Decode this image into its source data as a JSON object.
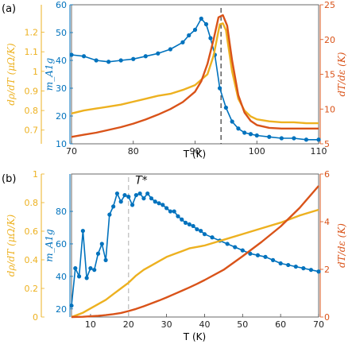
{
  "chart_data": [
    {
      "panel_label": "(a)",
      "type": "line",
      "xlabel": "T (K)",
      "xlim": [
        70,
        110
      ],
      "xticks": [
        "70",
        "80",
        "90",
        "100",
        "110"
      ],
      "annotations": [
        {
          "kind": "vline-dashed",
          "x": 94.2,
          "color": "#333333"
        }
      ],
      "axes": [
        {
          "side": "left-outer",
          "label": "dρ/dT (μΩ/K)",
          "ylim": [
            0.63,
            1.34
          ],
          "ticks": [
            "0.7",
            "0.8",
            "0.9",
            "1",
            "1.1",
            "1.2"
          ],
          "color": "#EDB120"
        },
        {
          "side": "left-inner",
          "label": "m_A1g",
          "ylim": [
            10,
            60
          ],
          "ticks": [
            "10",
            "20",
            "30",
            "40",
            "50",
            "60"
          ],
          "color": "#0072BD"
        },
        {
          "side": "right",
          "label": "dT/dε (K)",
          "ylim": [
            5,
            25
          ],
          "ticks": [
            "5",
            "10",
            "15",
            "20",
            "25"
          ],
          "color": "#D95319"
        }
      ],
      "series": [
        {
          "axis": "left-inner",
          "color": "#0072BD",
          "markers": true,
          "x": [
            70,
            72,
            74,
            76,
            78,
            80,
            82,
            84,
            86,
            88,
            89,
            90,
            91,
            91.8,
            92.5,
            93.2,
            94,
            95,
            96,
            97,
            98,
            99,
            100,
            102,
            104,
            106,
            108,
            110
          ],
          "y": [
            42,
            41.5,
            40,
            39.5,
            40,
            40.5,
            41.5,
            42.5,
            44,
            46.5,
            49,
            51,
            55,
            53,
            48,
            42,
            30,
            23,
            18,
            15.5,
            14,
            13.5,
            13,
            12.5,
            12,
            12,
            11.5,
            11.5
          ]
        },
        {
          "axis": "left-outer",
          "color": "#EDB120",
          "markers": false,
          "x": [
            70,
            72,
            74,
            76,
            78,
            80,
            82,
            84,
            86,
            88,
            90,
            92,
            93,
            94,
            94.5,
            95,
            96,
            97,
            98,
            99,
            100,
            102,
            104,
            106,
            108,
            110
          ],
          "y": [
            0.785,
            0.8,
            0.81,
            0.82,
            0.83,
            0.845,
            0.86,
            0.875,
            0.885,
            0.905,
            0.93,
            0.985,
            1.08,
            1.24,
            1.245,
            1.21,
            1.0,
            0.86,
            0.8,
            0.77,
            0.755,
            0.745,
            0.74,
            0.74,
            0.735,
            0.735
          ]
        },
        {
          "axis": "right",
          "color": "#D95319",
          "markers": false,
          "x": [
            70,
            72,
            74,
            76,
            78,
            80,
            82,
            84,
            86,
            88,
            90,
            91,
            92,
            93,
            93.8,
            94.5,
            95.2,
            96,
            97,
            98,
            99,
            100,
            102,
            104,
            106,
            108,
            110
          ],
          "y": [
            6,
            6.3,
            6.6,
            7,
            7.4,
            7.9,
            8.5,
            9.2,
            10,
            11,
            12.5,
            14,
            16.5,
            20,
            23.2,
            23.5,
            22,
            17,
            12,
            9.5,
            8.3,
            7.7,
            7.3,
            7.2,
            7.2,
            7.2,
            7.2
          ]
        }
      ]
    },
    {
      "panel_label": "(b)",
      "type": "line",
      "xlabel": "T (K)",
      "xlim": [
        5,
        70
      ],
      "xticks": [
        "10",
        "20",
        "30",
        "40",
        "50",
        "60",
        "70"
      ],
      "annotations": [
        {
          "kind": "vline-dashed",
          "x": 20,
          "color": "#BBBBBB"
        },
        {
          "kind": "text",
          "text": "T*",
          "x": 23,
          "y": 97
        }
      ],
      "axes": [
        {
          "side": "left-outer",
          "label": "dρ/dT (μΩ/K)",
          "ylim": [
            0,
            1.0
          ],
          "ticks": [
            "0",
            "0.2",
            "0.4",
            "0.6",
            "0.8",
            "1"
          ],
          "color": "#EDB120"
        },
        {
          "side": "left-inner",
          "label": "m_A1g",
          "ylim": [
            15,
            103
          ],
          "ticks": [
            "20",
            "40",
            "60",
            "80"
          ],
          "color": "#0072BD"
        },
        {
          "side": "right",
          "label": "dT/dε (K)",
          "ylim": [
            0,
            6
          ],
          "ticks": [
            "0",
            "2",
            "4",
            "6"
          ],
          "color": "#D95319"
        }
      ],
      "series": [
        {
          "axis": "left-inner",
          "color": "#0072BD",
          "markers": true,
          "x": [
            5,
            6,
            7,
            8,
            9,
            10,
            11,
            12,
            13,
            14,
            15,
            16,
            17,
            18,
            19,
            20,
            21,
            22,
            23,
            24,
            25,
            26,
            27,
            28,
            29,
            30,
            31,
            32,
            33,
            34,
            35,
            36,
            37,
            38,
            39,
            40,
            42,
            44,
            46,
            48,
            50,
            52,
            54,
            56,
            58,
            60,
            62,
            64,
            66,
            68,
            70
          ],
          "y": [
            22,
            45,
            40,
            68,
            39,
            45,
            44,
            54,
            60,
            50,
            78,
            83,
            91,
            86,
            90,
            89,
            84,
            90,
            91,
            88,
            91,
            88,
            86,
            85,
            84,
            82,
            80,
            80,
            77,
            75,
            73,
            72,
            71,
            69,
            68,
            66,
            64,
            62,
            60,
            58,
            56,
            54,
            53,
            52,
            50,
            48,
            47,
            46,
            45,
            44,
            43
          ]
        },
        {
          "axis": "left-outer",
          "color": "#EDB120",
          "markers": false,
          "x": [
            5,
            8,
            10,
            12,
            14,
            16,
            18,
            20,
            22,
            24,
            26,
            28,
            30,
            32,
            34,
            36,
            38,
            40,
            45,
            50,
            55,
            60,
            65,
            70
          ],
          "y": [
            0.0,
            0.03,
            0.06,
            0.09,
            0.12,
            0.16,
            0.2,
            0.24,
            0.29,
            0.33,
            0.36,
            0.39,
            0.42,
            0.44,
            0.46,
            0.48,
            0.49,
            0.5,
            0.54,
            0.58,
            0.62,
            0.66,
            0.71,
            0.75
          ]
        },
        {
          "axis": "right",
          "color": "#D95319",
          "markers": false,
          "x": [
            5,
            8,
            10,
            12,
            14,
            16,
            18,
            20,
            22,
            24,
            26,
            28,
            30,
            32,
            34,
            36,
            38,
            40,
            45,
            50,
            55,
            60,
            65,
            70
          ],
          "y": [
            0.0,
            0.01,
            0.03,
            0.05,
            0.08,
            0.12,
            0.17,
            0.25,
            0.34,
            0.45,
            0.57,
            0.69,
            0.82,
            0.96,
            1.1,
            1.24,
            1.39,
            1.55,
            1.98,
            2.55,
            3.15,
            3.8,
            4.58,
            5.5
          ]
        }
      ]
    }
  ]
}
